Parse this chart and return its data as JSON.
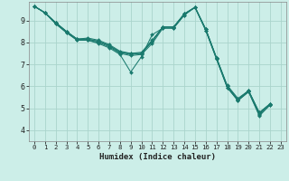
{
  "xlabel": "Humidex (Indice chaleur)",
  "bg_color": "#cceee8",
  "grid_color": "#aad4cc",
  "line_color": "#1a7a6e",
  "xlim": [
    -0.5,
    23.5
  ],
  "ylim": [
    3.5,
    9.85
  ],
  "yticks": [
    4,
    5,
    6,
    7,
    8,
    9
  ],
  "xticks": [
    0,
    1,
    2,
    3,
    4,
    5,
    6,
    7,
    8,
    9,
    10,
    11,
    12,
    13,
    14,
    15,
    16,
    17,
    18,
    19,
    20,
    21,
    22,
    23
  ],
  "lines": [
    {
      "x": [
        0,
        1,
        2,
        3,
        4,
        5,
        6,
        7,
        8,
        9,
        10,
        11,
        12,
        13,
        14,
        15,
        16,
        17,
        18,
        19,
        20,
        21,
        22
      ],
      "y": [
        9.65,
        9.35,
        8.85,
        8.45,
        8.1,
        8.1,
        7.95,
        7.75,
        7.45,
        6.65,
        7.35,
        8.35,
        8.65,
        8.65,
        9.25,
        9.6,
        8.55,
        7.25,
        5.95,
        5.35,
        5.75,
        4.65,
        5.15
      ]
    },
    {
      "x": [
        0,
        1,
        2,
        3,
        4,
        5,
        6,
        7,
        8,
        9,
        10,
        11,
        12,
        13,
        14,
        15,
        16,
        17,
        18,
        19,
        20,
        21,
        22
      ],
      "y": [
        9.65,
        9.35,
        8.85,
        8.45,
        8.1,
        8.1,
        8.0,
        7.8,
        7.5,
        7.4,
        7.45,
        7.95,
        8.65,
        8.65,
        9.25,
        9.6,
        8.55,
        7.25,
        5.95,
        5.35,
        5.75,
        4.7,
        5.15
      ]
    },
    {
      "x": [
        0,
        1,
        2,
        3,
        4,
        5,
        6,
        7,
        8,
        9,
        10,
        11,
        12,
        13,
        14,
        15,
        16,
        17,
        18,
        19,
        20,
        21,
        22
      ],
      "y": [
        9.65,
        9.35,
        8.9,
        8.5,
        8.15,
        8.15,
        8.05,
        7.85,
        7.55,
        7.45,
        7.5,
        8.05,
        8.7,
        8.7,
        9.3,
        9.6,
        8.6,
        7.3,
        6.0,
        5.4,
        5.8,
        4.75,
        5.2
      ]
    },
    {
      "x": [
        0,
        1,
        2,
        3,
        4,
        5,
        6,
        7,
        8,
        9,
        10,
        11,
        12,
        13,
        14,
        15,
        16,
        17,
        18,
        19,
        20,
        21,
        22
      ],
      "y": [
        9.65,
        9.35,
        8.9,
        8.5,
        8.15,
        8.15,
        8.05,
        7.85,
        7.55,
        7.5,
        7.5,
        8.05,
        8.7,
        8.7,
        9.3,
        9.6,
        8.6,
        7.3,
        6.0,
        5.4,
        5.8,
        4.8,
        5.2
      ]
    },
    {
      "x": [
        0,
        1,
        2,
        3,
        4,
        5,
        6,
        7,
        8,
        9,
        10,
        11,
        12,
        13,
        14,
        15,
        16,
        17,
        18,
        19,
        20,
        21,
        22
      ],
      "y": [
        9.65,
        9.35,
        8.9,
        8.5,
        8.15,
        8.2,
        8.1,
        7.9,
        7.6,
        7.5,
        7.55,
        8.1,
        8.7,
        8.7,
        9.3,
        9.6,
        8.6,
        7.3,
        6.05,
        5.45,
        5.8,
        4.8,
        5.2
      ]
    }
  ]
}
